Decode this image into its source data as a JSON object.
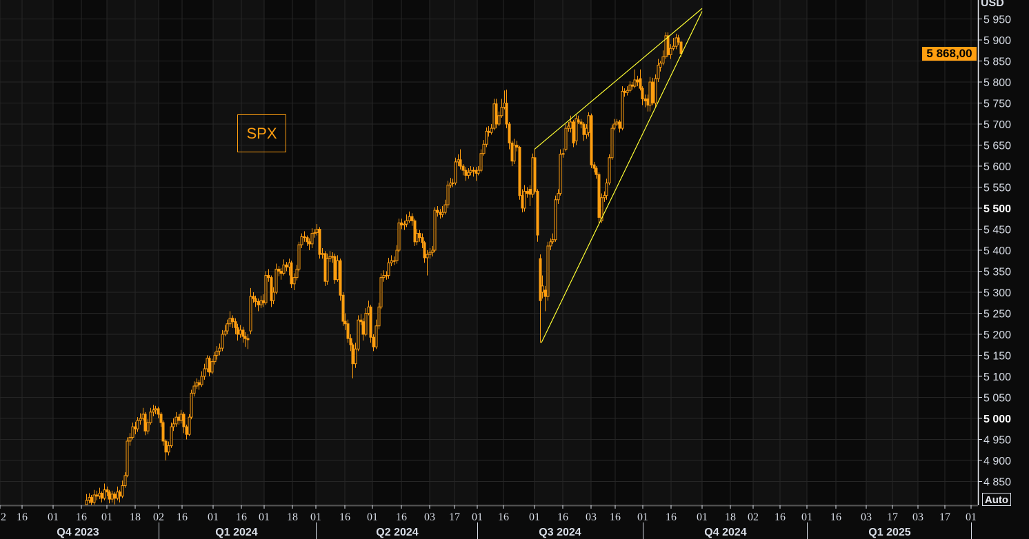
{
  "colors": {
    "candle": "#ff9e10",
    "trendline": "#ffff33",
    "background": "#0b0b0b",
    "grid": "#262626",
    "axis_text": "#d8dde6"
  },
  "chart_data": {
    "type": "candlestick",
    "ticker_label": "SPX",
    "currency": "USD",
    "last_price": "5 868,00",
    "scale_mode": "Auto",
    "ylim": [
      4795,
      5995
    ],
    "grid": true,
    "y_ticks": [
      {
        "value": 5950,
        "label": "5 950"
      },
      {
        "value": 5900,
        "label": "5 900"
      },
      {
        "value": 5850,
        "label": "5 850"
      },
      {
        "value": 5800,
        "label": "5 800"
      },
      {
        "value": 5750,
        "label": "5 750"
      },
      {
        "value": 5700,
        "label": "5 700"
      },
      {
        "value": 5650,
        "label": "5 650"
      },
      {
        "value": 5600,
        "label": "5 600"
      },
      {
        "value": 5550,
        "label": "5 550"
      },
      {
        "value": 5500,
        "label": "5 500",
        "bold": true
      },
      {
        "value": 5450,
        "label": "5 450"
      },
      {
        "value": 5400,
        "label": "5 400"
      },
      {
        "value": 5350,
        "label": "5 350"
      },
      {
        "value": 5300,
        "label": "5 300"
      },
      {
        "value": 5250,
        "label": "5 250"
      },
      {
        "value": 5200,
        "label": "5 200"
      },
      {
        "value": 5150,
        "label": "5 150"
      },
      {
        "value": 5100,
        "label": "5 100"
      },
      {
        "value": 5050,
        "label": "5 050"
      },
      {
        "value": 5000,
        "label": "5 000",
        "bold": true
      },
      {
        "value": 4950,
        "label": "4 950"
      },
      {
        "value": 4900,
        "label": "4 900"
      },
      {
        "value": 4850,
        "label": "4 850"
      }
    ],
    "x_tick_labels": [
      "2",
      "16",
      "01",
      "16",
      "01",
      "18",
      "02",
      "16",
      "01",
      "16",
      "01",
      "18",
      "01",
      "16",
      "01",
      "16",
      "03",
      "17",
      "01",
      "16",
      "01",
      "16",
      "03",
      "16",
      "01",
      "16",
      "01",
      "18",
      "02",
      "16",
      "01",
      "16",
      "03",
      "17",
      "03",
      "17",
      "01"
    ],
    "quarters": [
      "Q4 2023",
      "Q1 2024",
      "Q2 2024",
      "Q3 2024",
      "Q4 2024",
      "Q1 2025"
    ],
    "trendlines": [
      {
        "from": [
          "2024-08-01",
          5640
        ],
        "to": [
          "2024-11-01",
          5975
        ]
      },
      {
        "from": [
          "2024-08-05",
          5180
        ],
        "to": [
          "2024-11-01",
          5968
        ]
      }
    ],
    "candles_ohlc": [
      [
        4795,
        4820,
        4785,
        4805
      ],
      [
        4805,
        4822,
        4798,
        4812
      ],
      [
        4812,
        4818,
        4790,
        4800
      ],
      [
        4800,
        4830,
        4795,
        4818
      ],
      [
        4818,
        4828,
        4805,
        4815
      ],
      [
        4815,
        4835,
        4808,
        4822
      ],
      [
        4822,
        4826,
        4800,
        4810
      ],
      [
        4810,
        4845,
        4805,
        4830
      ],
      [
        4830,
        4838,
        4815,
        4825
      ],
      [
        4825,
        4830,
        4798,
        4808
      ],
      [
        4808,
        4828,
        4800,
        4820
      ],
      [
        4820,
        4825,
        4795,
        4810
      ],
      [
        4810,
        4838,
        4805,
        4825
      ],
      [
        4825,
        4830,
        4800,
        4815
      ],
      [
        4815,
        4852,
        4810,
        4840
      ],
      [
        4840,
        4872,
        4835,
        4864
      ],
      [
        4864,
        4955,
        4860,
        4946
      ],
      [
        4946,
        4965,
        4935,
        4955
      ],
      [
        4955,
        4990,
        4950,
        4980
      ],
      [
        4980,
        4992,
        4962,
        4975
      ],
      [
        4975,
        5003,
        4968,
        4995
      ],
      [
        4995,
        5012,
        4985,
        5000
      ],
      [
        5000,
        5025,
        4995,
        5010
      ],
      [
        5010,
        5015,
        4960,
        4970
      ],
      [
        4970,
        4998,
        4962,
        4990
      ],
      [
        4990,
        5025,
        4985,
        5015
      ],
      [
        5015,
        5032,
        5005,
        5020
      ],
      [
        5020,
        5030,
        5010,
        5023
      ],
      [
        5023,
        5028,
        5000,
        5010
      ],
      [
        5010,
        5015,
        4980,
        4990
      ],
      [
        4990,
        4995,
        4935,
        4946
      ],
      [
        4946,
        4950,
        4900,
        4920
      ],
      [
        4920,
        4945,
        4912,
        4935
      ],
      [
        4935,
        4990,
        4930,
        4980
      ],
      [
        4980,
        5000,
        4970,
        4987
      ],
      [
        4987,
        5015,
        4980,
        5003
      ],
      [
        5003,
        5010,
        4985,
        4995
      ],
      [
        4995,
        5020,
        4988,
        5010
      ],
      [
        5010,
        5015,
        4965,
        4980
      ],
      [
        4980,
        4985,
        4950,
        4962
      ],
      [
        4962,
        5010,
        4958,
        5003
      ],
      [
        5003,
        5068,
        4998,
        5060
      ],
      [
        5060,
        5088,
        5052,
        5077
      ],
      [
        5077,
        5095,
        5070,
        5085
      ],
      [
        5085,
        5092,
        5068,
        5080
      ],
      [
        5080,
        5112,
        5075,
        5100
      ],
      [
        5100,
        5130,
        5092,
        5118
      ],
      [
        5118,
        5150,
        5110,
        5143
      ],
      [
        5143,
        5148,
        5100,
        5110
      ],
      [
        5110,
        5142,
        5105,
        5135
      ],
      [
        5135,
        5158,
        5128,
        5150
      ],
      [
        5150,
        5172,
        5140,
        5160
      ],
      [
        5160,
        5178,
        5150,
        5167
      ],
      [
        5167,
        5210,
        5160,
        5200
      ],
      [
        5200,
        5222,
        5195,
        5208
      ],
      [
        5208,
        5235,
        5200,
        5225
      ],
      [
        5225,
        5255,
        5218,
        5238
      ],
      [
        5238,
        5245,
        5215,
        5230
      ],
      [
        5230,
        5238,
        5200,
        5216
      ],
      [
        5216,
        5225,
        5185,
        5200
      ],
      [
        5200,
        5222,
        5192,
        5210
      ],
      [
        5210,
        5218,
        5180,
        5195
      ],
      [
        5195,
        5205,
        5170,
        5190
      ],
      [
        5190,
        5200,
        5165,
        5187
      ],
      [
        5208,
        5310,
        5200,
        5290
      ],
      [
        5290,
        5300,
        5275,
        5285
      ],
      [
        5285,
        5292,
        5265,
        5278
      ],
      [
        5278,
        5285,
        5255,
        5270
      ],
      [
        5270,
        5292,
        5262,
        5280
      ],
      [
        5280,
        5295,
        5265,
        5275
      ],
      [
        5275,
        5350,
        5270,
        5340
      ],
      [
        5340,
        5355,
        5325,
        5335
      ],
      [
        5335,
        5340,
        5265,
        5280
      ],
      [
        5280,
        5312,
        5272,
        5300
      ],
      [
        5300,
        5368,
        5295,
        5355
      ],
      [
        5355,
        5362,
        5338,
        5350
      ],
      [
        5350,
        5358,
        5330,
        5345
      ],
      [
        5345,
        5378,
        5340,
        5365
      ],
      [
        5365,
        5372,
        5350,
        5360
      ],
      [
        5360,
        5380,
        5340,
        5370
      ],
      [
        5370,
        5375,
        5310,
        5320
      ],
      [
        5320,
        5345,
        5305,
        5335
      ],
      [
        5335,
        5365,
        5328,
        5355
      ],
      [
        5355,
        5420,
        5350,
        5413
      ],
      [
        5413,
        5440,
        5405,
        5432
      ],
      [
        5432,
        5445,
        5420,
        5430
      ],
      [
        5430,
        5435,
        5410,
        5420
      ],
      [
        5420,
        5428,
        5400,
        5415
      ],
      [
        5415,
        5452,
        5405,
        5440
      ],
      [
        5440,
        5450,
        5430,
        5442
      ],
      [
        5442,
        5462,
        5435,
        5450
      ],
      [
        5450,
        5455,
        5380,
        5390
      ],
      [
        5390,
        5405,
        5380,
        5392
      ],
      [
        5392,
        5398,
        5315,
        5326
      ],
      [
        5326,
        5392,
        5318,
        5380
      ],
      [
        5380,
        5398,
        5372,
        5385
      ],
      [
        5385,
        5395,
        5370,
        5385
      ],
      [
        5385,
        5392,
        5320,
        5330
      ],
      [
        5330,
        5388,
        5325,
        5375
      ],
      [
        5375,
        5380,
        5280,
        5293
      ],
      [
        5293,
        5300,
        5220,
        5231
      ],
      [
        5231,
        5250,
        5210,
        5225
      ],
      [
        5225,
        5235,
        5180,
        5190
      ],
      [
        5190,
        5200,
        5160,
        5175
      ],
      [
        5175,
        5180,
        5095,
        5130
      ],
      [
        5130,
        5180,
        5120,
        5165
      ],
      [
        5165,
        5245,
        5160,
        5234
      ],
      [
        5234,
        5248,
        5222,
        5230
      ],
      [
        5230,
        5238,
        5185,
        5200
      ],
      [
        5200,
        5262,
        5195,
        5250
      ],
      [
        5250,
        5280,
        5245,
        5265
      ],
      [
        5265,
        5270,
        5180,
        5193
      ],
      [
        5193,
        5200,
        5160,
        5170
      ],
      [
        5170,
        5235,
        5165,
        5220
      ],
      [
        5220,
        5275,
        5212,
        5265
      ],
      [
        5265,
        5345,
        5260,
        5335
      ],
      [
        5335,
        5352,
        5325,
        5340
      ],
      [
        5340,
        5350,
        5330,
        5340
      ],
      [
        5340,
        5382,
        5332,
        5370
      ],
      [
        5370,
        5388,
        5362,
        5375
      ],
      [
        5375,
        5385,
        5365,
        5375
      ],
      [
        5375,
        5412,
        5368,
        5400
      ],
      [
        5400,
        5475,
        5395,
        5465
      ],
      [
        5465,
        5475,
        5450,
        5460
      ],
      [
        5460,
        5470,
        5448,
        5462
      ],
      [
        5462,
        5485,
        5455,
        5470
      ],
      [
        5470,
        5492,
        5465,
        5480
      ],
      [
        5480,
        5488,
        5458,
        5470
      ],
      [
        5470,
        5475,
        5410,
        5420
      ],
      [
        5420,
        5450,
        5412,
        5440
      ],
      [
        5440,
        5448,
        5420,
        5430
      ],
      [
        5430,
        5440,
        5405,
        5418
      ],
      [
        5418,
        5422,
        5370,
        5382
      ],
      [
        5382,
        5400,
        5340,
        5390
      ],
      [
        5390,
        5405,
        5380,
        5395
      ],
      [
        5395,
        5410,
        5385,
        5400
      ],
      [
        5400,
        5502,
        5395,
        5495
      ],
      [
        5495,
        5505,
        5480,
        5490
      ],
      [
        5490,
        5498,
        5475,
        5485
      ],
      [
        5485,
        5505,
        5478,
        5490
      ],
      [
        5490,
        5520,
        5485,
        5508
      ],
      [
        5508,
        5565,
        5500,
        5555
      ],
      [
        5555,
        5572,
        5548,
        5560
      ],
      [
        5560,
        5570,
        5550,
        5560
      ],
      [
        5560,
        5620,
        5555,
        5610
      ],
      [
        5610,
        5628,
        5600,
        5615
      ],
      [
        5615,
        5640,
        5592,
        5600
      ],
      [
        5600,
        5605,
        5578,
        5590
      ],
      [
        5590,
        5598,
        5565,
        5578
      ],
      [
        5578,
        5595,
        5570,
        5585
      ],
      [
        5585,
        5600,
        5578,
        5590
      ],
      [
        5590,
        5598,
        5575,
        5588
      ],
      [
        5590,
        5598,
        5565,
        5583
      ],
      [
        5583,
        5600,
        5578,
        5590
      ],
      [
        5590,
        5640,
        5585,
        5630
      ],
      [
        5630,
        5662,
        5625,
        5652
      ],
      [
        5652,
        5692,
        5645,
        5683
      ],
      [
        5683,
        5695,
        5670,
        5680
      ],
      [
        5680,
        5700,
        5675,
        5690
      ],
      [
        5690,
        5760,
        5685,
        5748
      ],
      [
        5748,
        5760,
        5690,
        5700
      ],
      [
        5700,
        5730,
        5695,
        5720
      ],
      [
        5720,
        5760,
        5715,
        5740
      ],
      [
        5740,
        5780,
        5735,
        5750
      ],
      [
        5750,
        5782,
        5690,
        5700
      ],
      [
        5700,
        5705,
        5640,
        5655
      ],
      [
        5655,
        5660,
        5600,
        5612
      ],
      [
        5612,
        5665,
        5605,
        5650
      ],
      [
        5650,
        5660,
        5635,
        5645
      ],
      [
        5645,
        5648,
        5520,
        5530
      ],
      [
        5530,
        5545,
        5490,
        5500
      ],
      [
        5500,
        5555,
        5492,
        5540
      ],
      [
        5540,
        5550,
        5525,
        5535
      ],
      [
        5545,
        5555,
        5505,
        5533
      ],
      [
        5533,
        5630,
        5525,
        5620
      ],
      [
        5620,
        5640,
        5535,
        5540
      ],
      [
        5540,
        5545,
        5420,
        5436
      ],
      [
        5380,
        5390,
        5180,
        5280
      ],
      [
        5300,
        5340,
        5285,
        5315
      ],
      [
        5305,
        5315,
        5255,
        5290
      ],
      [
        5290,
        5420,
        5280,
        5410
      ],
      [
        5410,
        5428,
        5400,
        5420
      ],
      [
        5420,
        5440,
        5415,
        5425
      ],
      [
        5425,
        5530,
        5420,
        5520
      ],
      [
        5520,
        5545,
        5510,
        5535
      ],
      [
        5535,
        5640,
        5530,
        5628
      ],
      [
        5628,
        5642,
        5620,
        5630
      ],
      [
        5640,
        5700,
        5635,
        5690
      ],
      [
        5690,
        5705,
        5682,
        5695
      ],
      [
        5690,
        5720,
        5680,
        5705
      ],
      [
        5705,
        5710,
        5645,
        5655
      ],
      [
        5660,
        5722,
        5650,
        5713
      ],
      [
        5710,
        5720,
        5700,
        5705
      ],
      [
        5705,
        5712,
        5690,
        5700
      ],
      [
        5700,
        5705,
        5660,
        5675
      ],
      [
        5675,
        5700,
        5665,
        5690
      ],
      [
        5680,
        5728,
        5670,
        5720
      ],
      [
        5720,
        5725,
        5595,
        5603
      ],
      [
        5603,
        5610,
        5585,
        5595
      ],
      [
        5595,
        5600,
        5570,
        5580
      ],
      [
        5580,
        5585,
        5465,
        5478
      ],
      [
        5470,
        5535,
        5465,
        5525
      ],
      [
        5525,
        5540,
        5515,
        5530
      ],
      [
        5530,
        5570,
        5520,
        5560
      ],
      [
        5560,
        5628,
        5555,
        5620
      ],
      [
        5620,
        5698,
        5615,
        5690
      ],
      [
        5690,
        5712,
        5685,
        5700
      ],
      [
        5700,
        5712,
        5695,
        5705
      ],
      [
        5705,
        5710,
        5680,
        5690
      ],
      [
        5690,
        5790,
        5685,
        5778
      ],
      [
        5778,
        5785,
        5765,
        5775
      ],
      [
        5775,
        5790,
        5768,
        5780
      ],
      [
        5780,
        5802,
        5775,
        5793
      ],
      [
        5793,
        5800,
        5782,
        5790
      ],
      [
        5790,
        5830,
        5785,
        5805
      ],
      [
        5805,
        5815,
        5790,
        5800
      ],
      [
        5808,
        5830,
        5780,
        5785
      ],
      [
        5785,
        5790,
        5745,
        5760
      ],
      [
        5760,
        5770,
        5740,
        5755
      ],
      [
        5760,
        5770,
        5730,
        5745
      ],
      [
        5745,
        5812,
        5730,
        5800
      ],
      [
        5800,
        5810,
        5745,
        5750
      ],
      [
        5750,
        5818,
        5740,
        5808
      ],
      [
        5808,
        5855,
        5800,
        5840
      ],
      [
        5835,
        5850,
        5825,
        5845
      ],
      [
        5845,
        5875,
        5840,
        5860
      ],
      [
        5860,
        5918,
        5855,
        5910
      ],
      [
        5910,
        5918,
        5860,
        5865
      ],
      [
        5865,
        5890,
        5855,
        5880
      ],
      [
        5880,
        5905,
        5875,
        5885
      ],
      [
        5885,
        5915,
        5878,
        5905
      ],
      [
        5905,
        5912,
        5888,
        5895
      ],
      [
        5895,
        5898,
        5860,
        5868
      ]
    ]
  }
}
